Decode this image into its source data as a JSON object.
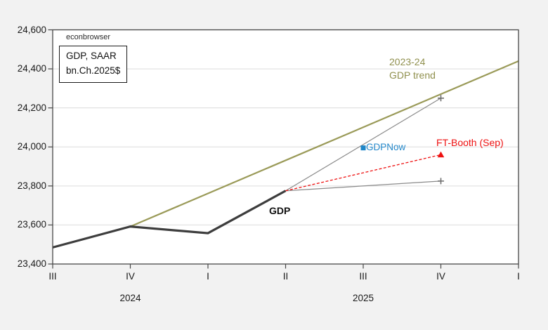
{
  "header": {
    "watermark": "econbrowser"
  },
  "info_box": {
    "line1": "GDP, SAAR",
    "line2": "bn.Ch.2025$"
  },
  "chart_data": {
    "type": "line",
    "title": "",
    "units_note": "GDP, SAAR bn.Ch.2025$",
    "x_axis": {
      "quarter_labels": [
        "III",
        "IV",
        "I",
        "II",
        "III",
        "IV",
        "I"
      ],
      "year_labels": [
        {
          "label": "2024",
          "quarter_index": 1
        },
        {
          "label": "2025",
          "quarter_index": 4
        }
      ]
    },
    "y_axis": {
      "min": 23400,
      "max": 24600,
      "ticks": [
        {
          "value": 23400,
          "label": "23,400"
        },
        {
          "value": 23600,
          "label": "23,600"
        },
        {
          "value": 23800,
          "label": "23,800"
        },
        {
          "value": 24000,
          "label": "24,000"
        },
        {
          "value": 24200,
          "label": "24,200"
        },
        {
          "value": 24400,
          "label": "24,400"
        },
        {
          "value": 24600,
          "label": "24,600"
        }
      ]
    },
    "colors": {
      "background": "#f2f2f2",
      "plot_background": "#ffffff",
      "gridline": "#dcdcdc",
      "frame": "#474747",
      "trend": "#9a9a58",
      "gdp": "#3d3d3d",
      "fan_gray": "#8a8a8a",
      "marker_gray": "#6e6e6e",
      "ft_red": "#ee1111",
      "gdpnow_blue": "#1d86c8"
    },
    "series": [
      {
        "id": "gdp_trend",
        "name": "2023-24 GDP trend",
        "color": "#9a9a58",
        "width": 2.2,
        "dash": "",
        "marker": "",
        "points": [
          {
            "q": 1,
            "value": 23592
          },
          {
            "q": 6,
            "value": 24440
          }
        ]
      },
      {
        "id": "fan_high",
        "name": "upper projection",
        "color": "#8a8a8a",
        "width": 1.2,
        "dash": "",
        "marker": "plus",
        "points": [
          {
            "q": 3,
            "value": 23775
          },
          {
            "q": 5,
            "value": 24250
          }
        ]
      },
      {
        "id": "fan_low",
        "name": "lower projection",
        "color": "#8a8a8a",
        "width": 1.2,
        "dash": "",
        "marker": "plus",
        "points": [
          {
            "q": 3,
            "value": 23775
          },
          {
            "q": 5,
            "value": 23825
          }
        ]
      },
      {
        "id": "ft_booth",
        "name": "FT-Booth (Sep)",
        "color": "#ee1111",
        "width": 1.3,
        "dash": "4,2.5",
        "marker": "triangle",
        "points": [
          {
            "q": 3,
            "value": 23775
          },
          {
            "q": 5,
            "value": 23960
          }
        ]
      },
      {
        "id": "gdp",
        "name": "GDP",
        "color": "#3d3d3d",
        "width": 3.2,
        "dash": "",
        "marker": "",
        "points": [
          {
            "q": 0,
            "value": 23485
          },
          {
            "q": 1,
            "value": 23592
          },
          {
            "q": 2,
            "value": 23558
          },
          {
            "q": 3,
            "value": 23775
          }
        ]
      },
      {
        "id": "gdpnow",
        "name": "GDPNow",
        "color": "#1d86c8",
        "width": 0,
        "dash": "",
        "marker": "square",
        "points": [
          {
            "q": 4,
            "value": 23995
          }
        ]
      }
    ],
    "annotations": {
      "trend_label_line1": "2023-24",
      "trend_label_line2": "GDP trend",
      "gdpnow_label": "GDPNow",
      "ft_label": "FT-Booth (Sep)",
      "gdp_label": "GDP"
    }
  }
}
